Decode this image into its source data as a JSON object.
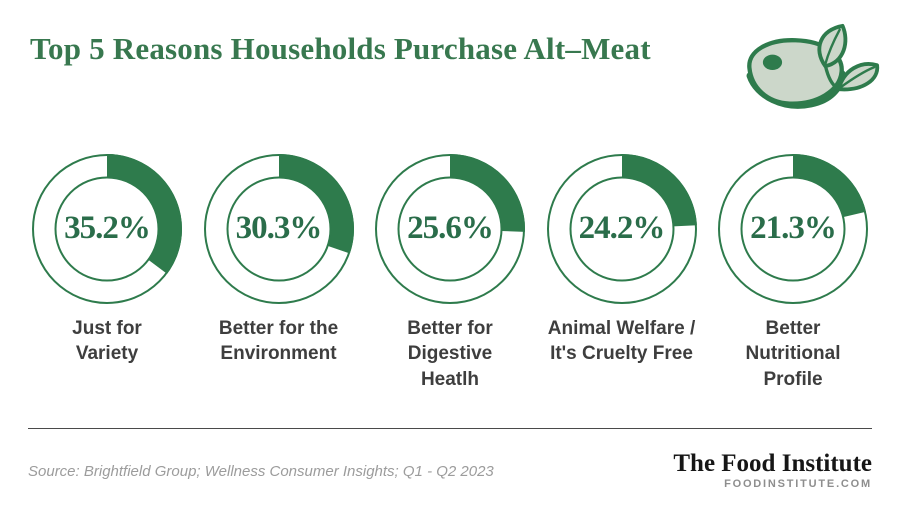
{
  "header": {
    "title": "Top 5 Reasons Households Purchase Alt–Meat"
  },
  "colors": {
    "brand_green": "#2e7b4c",
    "title_green": "#38784f",
    "percent_green": "#2a6d4a",
    "label_dark": "#3e3e3e",
    "logo_light_green": "#ccd7ca"
  },
  "chart_data": {
    "type": "pie",
    "variant": "donut_small_multiples",
    "title": "Top 5 Reasons Households Purchase Alt–Meat",
    "unit": "%",
    "start_angle": "12 o'clock",
    "direction": "clockwise",
    "categories": [
      "Just for Variety",
      "Better for the Environment",
      "Better for Digestive Heatlh",
      "Animal Welfare / It's Cruelty Free",
      "Better Nutritional Profile"
    ],
    "category_labels": [
      "Just for\nVariety",
      "Better for the\nEnvironment",
      "Better for\nDigestive\nHeatlh",
      "Animal Welfare /\nIt's Cruelty Free",
      "Better\nNutritional\nProfile"
    ],
    "values": [
      35.2,
      30.3,
      25.6,
      24.2,
      21.3
    ],
    "value_labels": [
      "35.2%",
      "30.3%",
      "25.6%",
      "24.2%",
      "21.3%"
    ]
  },
  "footer": {
    "source": "Source: Brightfield Group; Wellness Consumer Insights; Q1 - Q2 2023",
    "brand_name": "The Food Institute",
    "brand_url": "FOODINSTITUTE.COM"
  },
  "logo": {
    "name": "steak-with-leaves-alt-meat-logo"
  }
}
